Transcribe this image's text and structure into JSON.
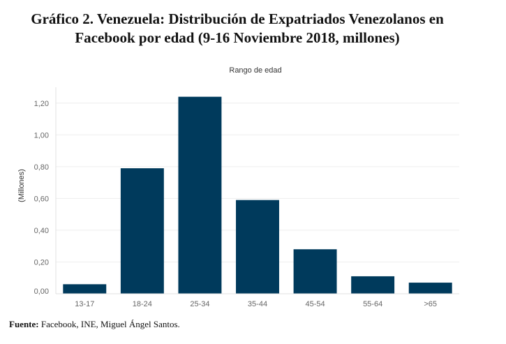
{
  "title": {
    "line1": "Gráfico 2. Venezuela: Distribución de Expatriados Venezolanos en",
    "line2": "Facebook por edad (9-16 Noviembre 2018, millones)"
  },
  "source": {
    "label": "Fuente:",
    "text": " Facebook, INE, Miguel Ángel Santos."
  },
  "colors": {
    "bar": "#003a5c",
    "grid": "#eeeeee",
    "tick_text": "#666666",
    "axis_title": "#333333"
  },
  "chart_data": {
    "type": "bar",
    "title": "Rango de edad",
    "xlabel": "Rango de edad",
    "ylabel": "(Millones)",
    "categories": [
      "13-17",
      "18-24",
      "25-34",
      "35-44",
      "45-54",
      "55-64",
      ">65"
    ],
    "values": [
      0.06,
      0.79,
      1.24,
      0.59,
      0.28,
      0.11,
      0.07
    ],
    "ylim": [
      0,
      1.3
    ],
    "yticks": [
      0,
      0.2,
      0.4,
      0.6,
      0.8,
      1.0,
      1.2
    ],
    "ytick_labels": [
      "0,00",
      "0,20",
      "0,40",
      "0,60",
      "0,80",
      "1,00",
      "1,20"
    ],
    "grid": true,
    "legend": "none"
  }
}
